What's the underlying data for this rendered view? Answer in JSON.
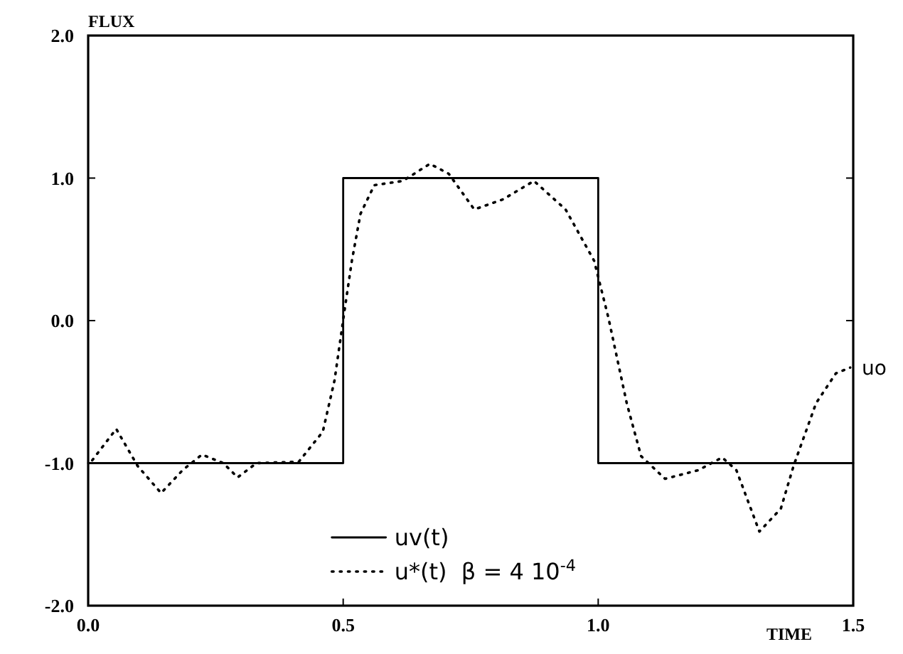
{
  "chart_data": {
    "type": "line",
    "xlabel": "TIME",
    "ylabel": "FLUX",
    "xlim": [
      0,
      1.5
    ],
    "ylim": [
      -2,
      2
    ],
    "xticks": [
      {
        "value": 0,
        "label": "0.0"
      },
      {
        "value": 0.5,
        "label": "0.5"
      },
      {
        "value": 1,
        "label": "1.0"
      },
      {
        "value": 1.5,
        "label": "1.5"
      }
    ],
    "yticks": [
      {
        "value": -2,
        "label": "-2.0"
      },
      {
        "value": -1,
        "label": "-1.0"
      },
      {
        "value": 0,
        "label": "0.0"
      },
      {
        "value": 1,
        "label": "1.0"
      },
      {
        "value": 2,
        "label": "2.0"
      }
    ],
    "grid": false,
    "legend": "bottom",
    "marker": "none",
    "series": [
      {
        "name": "uv(t)",
        "color": "#000000",
        "line_style": "solid",
        "x": [
          0,
          0.5,
          0.5,
          1,
          1,
          1.5
        ],
        "values": [
          -1,
          -1,
          1,
          1,
          -1,
          -1
        ]
      },
      {
        "name": "u*(t)  β = 4 10$^{-4}$",
        "color": "#000000",
        "line_style": "dotted",
        "x": [
          0.008,
          0.055,
          0.097,
          0.143,
          0.185,
          0.223,
          0.265,
          0.293,
          0.33,
          0.413,
          0.46,
          0.483,
          0.503,
          0.517,
          0.534,
          0.561,
          0.617,
          0.67,
          0.707,
          0.757,
          0.813,
          0.874,
          0.936,
          0.992,
          1.02,
          1.056,
          1.084,
          1.131,
          1.196,
          1.243,
          1.271,
          1.316,
          1.358,
          1.383,
          1.427,
          1.466,
          1.494
        ],
        "values": [
          -0.98,
          -0.76,
          -1.02,
          -1.21,
          -1.05,
          -0.94,
          -1.0,
          -1.1,
          -1.0,
          -0.99,
          -0.78,
          -0.42,
          0.08,
          0.42,
          0.75,
          0.95,
          0.98,
          1.1,
          1.03,
          0.78,
          0.85,
          0.98,
          0.78,
          0.42,
          0.02,
          -0.58,
          -0.95,
          -1.11,
          -1.05,
          -0.96,
          -1.05,
          -1.48,
          -1.32,
          -1.02,
          -0.58,
          -0.37,
          -0.33
        ]
      }
    ],
    "annotations": [
      {
        "text": "uo",
        "x": 1.5,
        "y": -0.33
      }
    ]
  }
}
